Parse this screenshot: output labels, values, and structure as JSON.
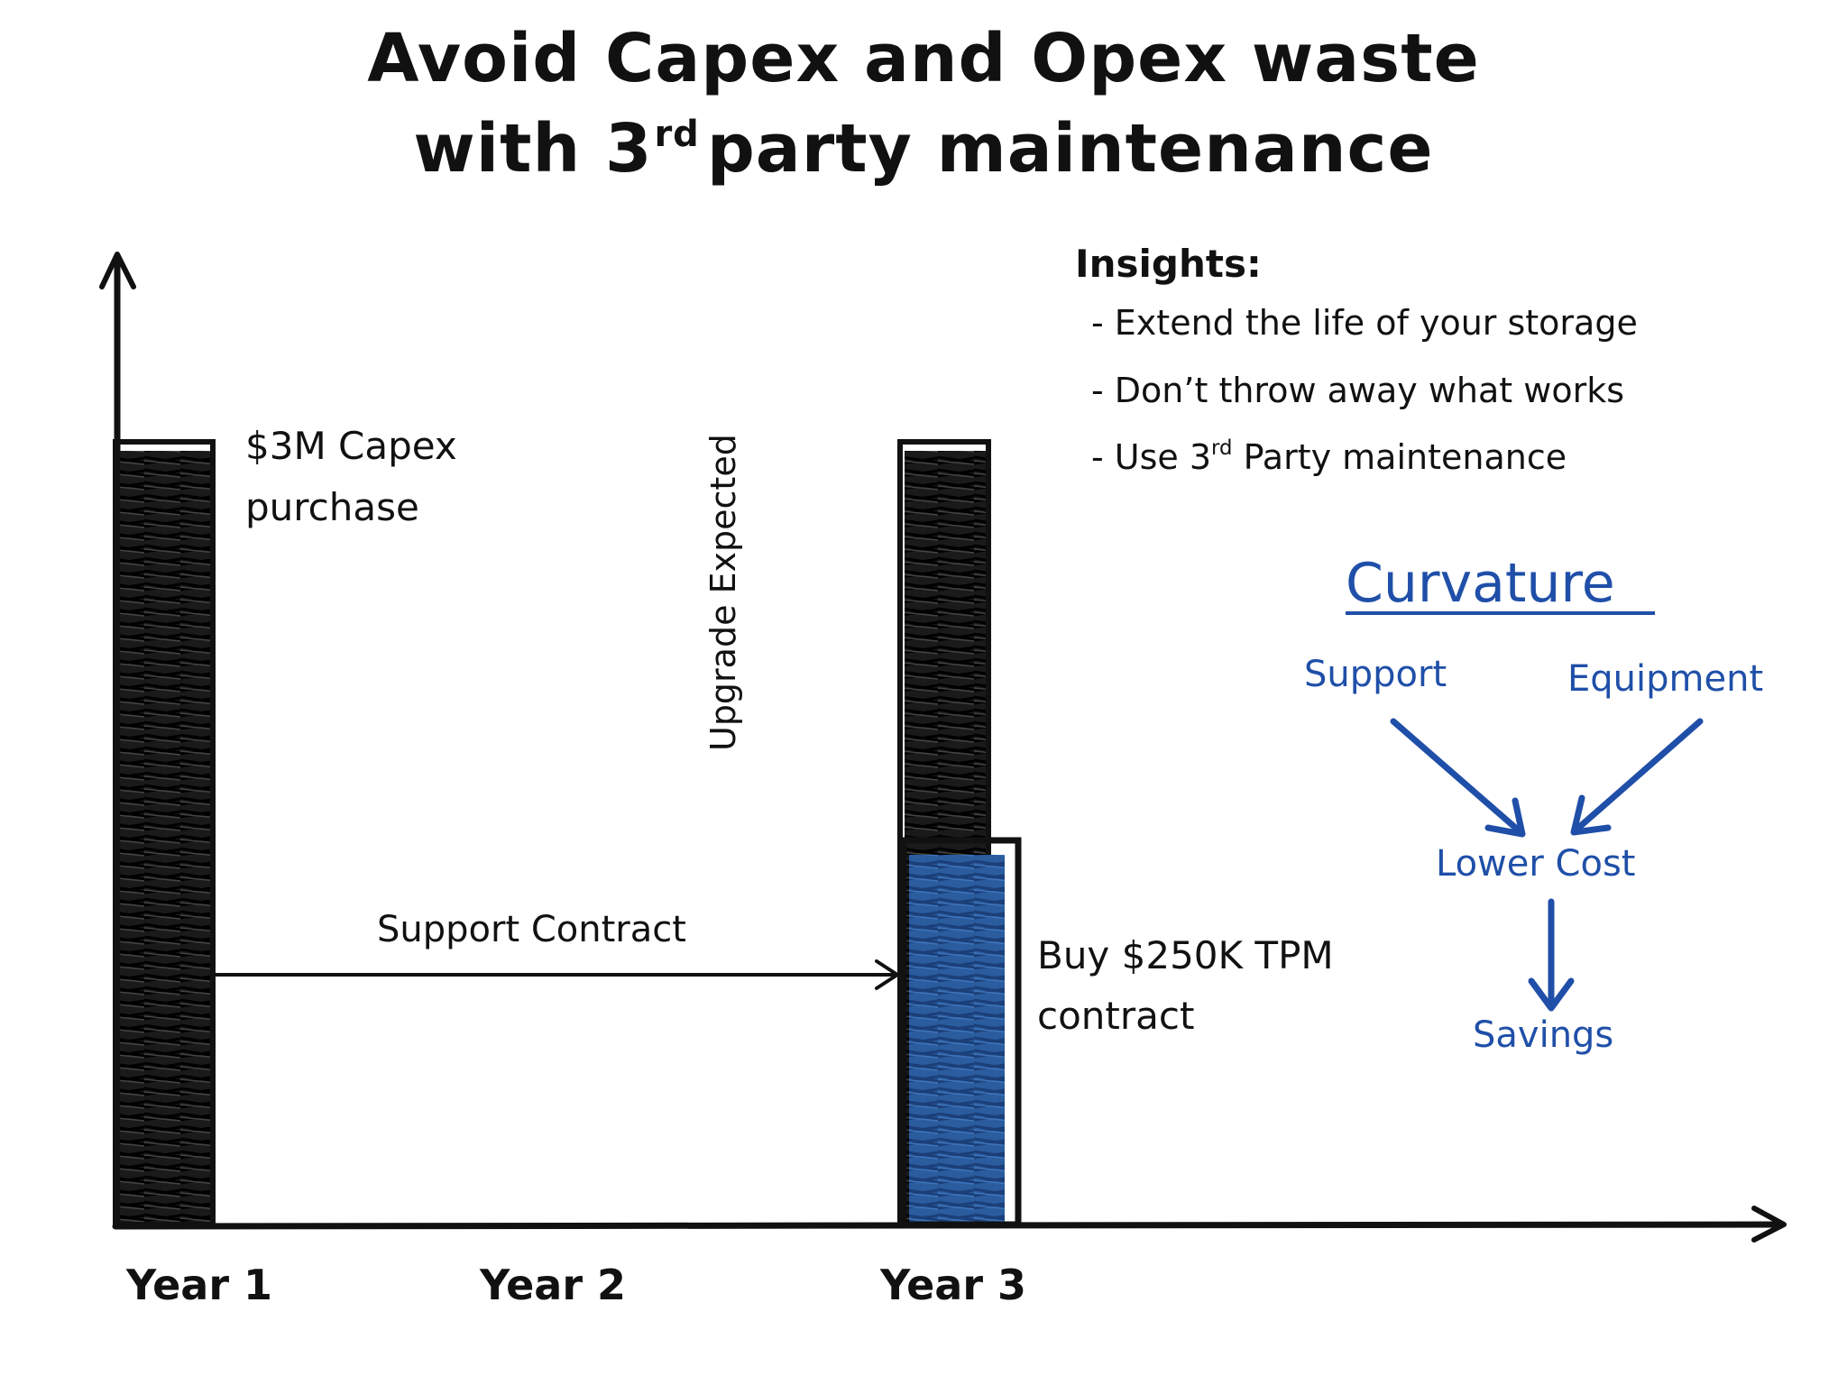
{
  "title": {
    "line1": "Avoid Capex and Opex waste",
    "line2_pre": "with 3",
    "line2_sup": "rd",
    "line2_post": "party maintenance"
  },
  "insights": {
    "heading": "Insights:",
    "item1": "- Extend the life of your storage",
    "item2": "- Don’t throw away what works",
    "item3_pre": "- Use 3",
    "item3_sup": "rd",
    "item3_post": " Party maintenance"
  },
  "labels": {
    "capex_line1": "$3M Capex",
    "capex_line2": "purchase",
    "support_contract": "Support Contract",
    "upgrade_expected": "Upgrade Expected",
    "tpm_line1": "Buy $250K TPM",
    "tpm_line2": "contract"
  },
  "axis": {
    "year1": "Year 1",
    "year2": "Year 2",
    "year3": "Year 3"
  },
  "flow": {
    "title": "Curvature",
    "support": "Support",
    "equipment": "Equipment",
    "lower_cost": "Lower Cost",
    "savings": "Savings"
  },
  "colors": {
    "ink": "#111111",
    "accent_blue": "#1f4fa8",
    "fill_blue": "#2a5c9e"
  }
}
